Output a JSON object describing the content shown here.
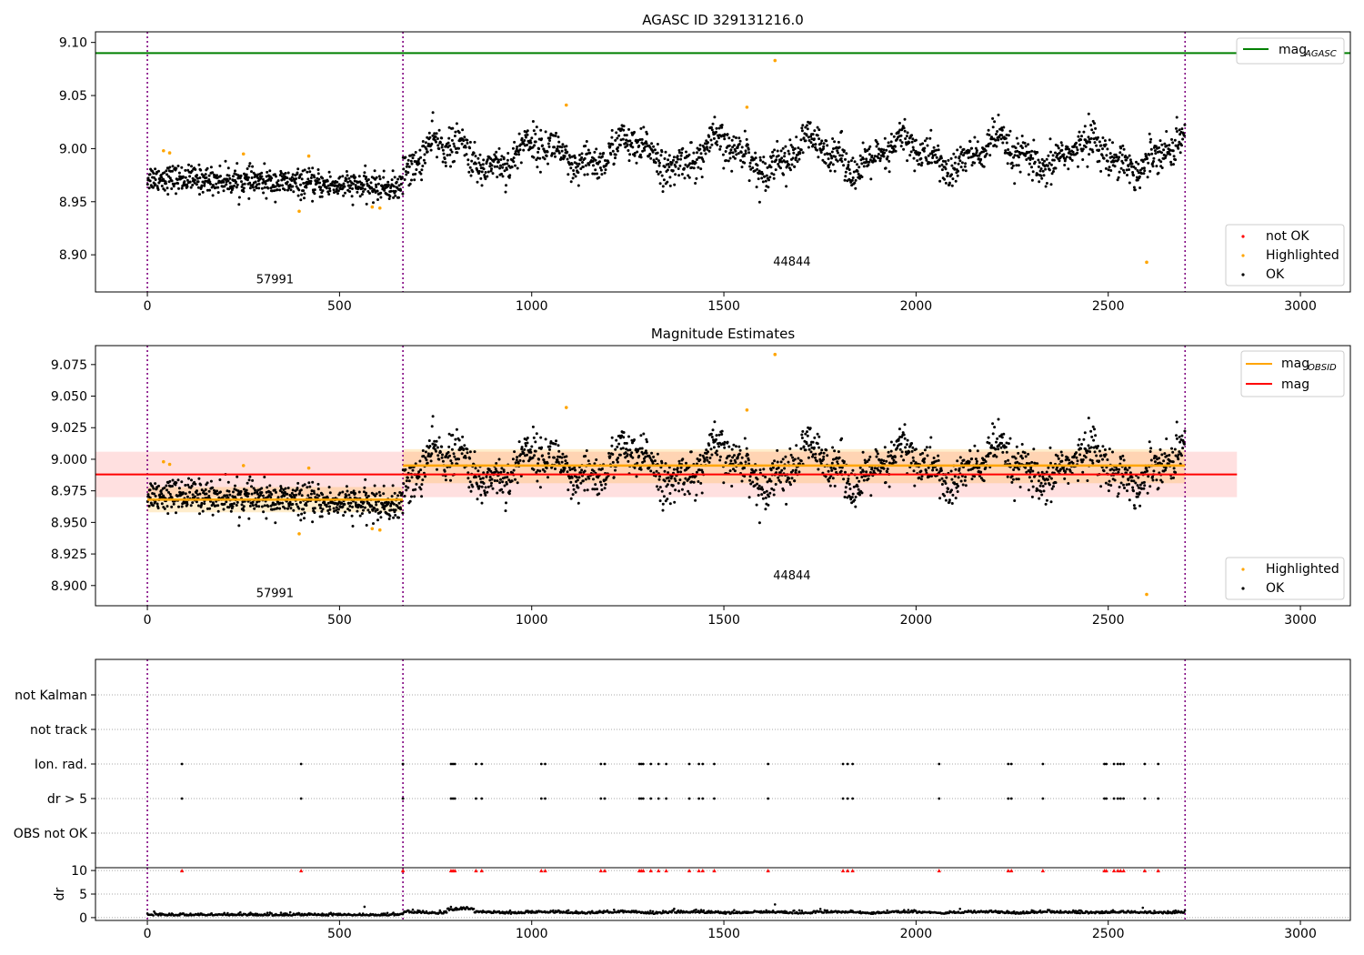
{
  "chart_data": [
    {
      "type": "scatter",
      "title": "AGASC ID 329131216.0",
      "xlim": [
        -135,
        3130
      ],
      "ylim": [
        8.865,
        9.11
      ],
      "xticks": [
        0,
        500,
        1000,
        1500,
        2000,
        2500,
        3000
      ],
      "yticks": [
        8.9,
        8.95,
        9.0,
        9.05,
        9.1
      ],
      "ytick_labels": [
        "8.90",
        "8.95",
        "9.00",
        "9.05",
        "9.10"
      ],
      "vlines": [
        0,
        665,
        2700
      ],
      "hlines": [
        {
          "name": "mag_AGASC",
          "y": 9.09,
          "color": "#008000"
        }
      ],
      "obsid_labels": [
        {
          "text": "57991",
          "x": 332,
          "y": 8.873
        },
        {
          "text": "44844",
          "x": 1677,
          "y": 8.89
        }
      ],
      "legends": [
        {
          "position": "top-right",
          "entries": [
            {
              "line": true,
              "color": "#008000",
              "label": "mag",
              "sub": "AGASC"
            }
          ]
        },
        {
          "position": "lower-right",
          "entries": [
            {
              "dot": true,
              "color": "#ff0000",
              "label": "not OK"
            },
            {
              "dot": true,
              "color": "#ffa500",
              "label": "Highlighted"
            },
            {
              "dot": true,
              "color": "#000000",
              "label": "OK"
            }
          ]
        }
      ],
      "segments": [
        {
          "x0": 0,
          "x1": 665,
          "mean": 8.968,
          "trend": -0.01,
          "spread": 0.009
        },
        {
          "x0": 665,
          "x1": 2700,
          "mean": 8.994,
          "trend": 0.0,
          "spread": 0.012
        }
      ],
      "highlighted": [
        {
          "x": 42,
          "y": 8.998
        },
        {
          "x": 58,
          "y": 8.996
        },
        {
          "x": 250,
          "y": 8.995
        },
        {
          "x": 395,
          "y": 8.941
        },
        {
          "x": 420,
          "y": 8.993
        },
        {
          "x": 585,
          "y": 8.945
        },
        {
          "x": 605,
          "y": 8.944
        },
        {
          "x": 1090,
          "y": 9.041
        },
        {
          "x": 1560,
          "y": 9.039
        },
        {
          "x": 1633,
          "y": 9.083
        },
        {
          "x": 2600,
          "y": 8.893
        }
      ]
    },
    {
      "type": "scatter",
      "title": "Magnitude Estimates",
      "xlim": [
        -135,
        3130
      ],
      "ylim": [
        8.884,
        9.09
      ],
      "xticks": [
        0,
        500,
        1000,
        1500,
        2000,
        2500,
        3000
      ],
      "yticks": [
        8.9,
        8.925,
        8.95,
        8.975,
        9.0,
        9.025,
        9.05,
        9.075
      ],
      "ytick_labels": [
        "8.900",
        "8.925",
        "8.950",
        "8.975",
        "9.000",
        "9.025",
        "9.050",
        "9.075"
      ],
      "vlines": [
        0,
        665,
        2700
      ],
      "mag": {
        "y": 8.988,
        "band": [
          8.97,
          9.006
        ],
        "x0": 0,
        "x1": 2835,
        "color": "#ff0000"
      },
      "mag_obsid": [
        {
          "x0": 0,
          "x1": 665,
          "y": 8.968,
          "band": [
            8.958,
            8.978
          ]
        },
        {
          "x0": 665,
          "x1": 2700,
          "y": 8.995,
          "band": [
            8.981,
            9.008
          ]
        }
      ],
      "obsid_labels": [
        {
          "text": "57991",
          "x": 332,
          "y": 8.891
        },
        {
          "text": "44844",
          "x": 1677,
          "y": 8.905
        }
      ],
      "legends": [
        {
          "position": "top-right",
          "entries": [
            {
              "line": true,
              "color": "#ffa500",
              "label": "mag",
              "sub": "OBSID"
            },
            {
              "line": true,
              "color": "#ff0000",
              "label": "mag"
            }
          ]
        },
        {
          "position": "lower-right",
          "entries": [
            {
              "dot": true,
              "color": "#ffa500",
              "label": "Highlighted"
            },
            {
              "dot": true,
              "color": "#000000",
              "label": "OK"
            }
          ]
        }
      ]
    },
    {
      "type": "scatter",
      "title": "",
      "xlim": [
        -135,
        3130
      ],
      "categories": [
        "not Kalman",
        "not track",
        "Ion. rad.",
        "dr > 5",
        "OBS not OK"
      ],
      "vlines": [
        0,
        665,
        2700
      ],
      "flag_times": [
        90,
        400,
        665,
        790,
        795,
        800,
        855,
        870,
        1025,
        1035,
        1180,
        1190,
        1280,
        1285,
        1290,
        1310,
        1330,
        1350,
        1410,
        1435,
        1445,
        1475,
        1615,
        1810,
        1822,
        1835,
        2060,
        2240,
        2248,
        2330,
        2490,
        2495,
        2515,
        2525,
        2532,
        2540,
        2595,
        2630
      ]
    },
    {
      "type": "scatter",
      "title": "",
      "ylabel": "dr",
      "xlim": [
        -135,
        3130
      ],
      "ylim": [
        -0.6,
        10.6
      ],
      "xticks": [
        0,
        500,
        1000,
        1500,
        2000,
        2500,
        3000
      ],
      "yticks": [
        0,
        5,
        10
      ],
      "ytick_labels": [
        "0",
        "5",
        "10"
      ],
      "vlines": [
        0,
        665,
        2700
      ],
      "dr_base": 0.45,
      "outliers": [
        {
          "x": 565,
          "y": 2.3
        },
        {
          "x": 1633,
          "y": 2.8
        },
        {
          "x": 2590,
          "y": 2.1
        }
      ],
      "clipped_value": 10
    }
  ]
}
